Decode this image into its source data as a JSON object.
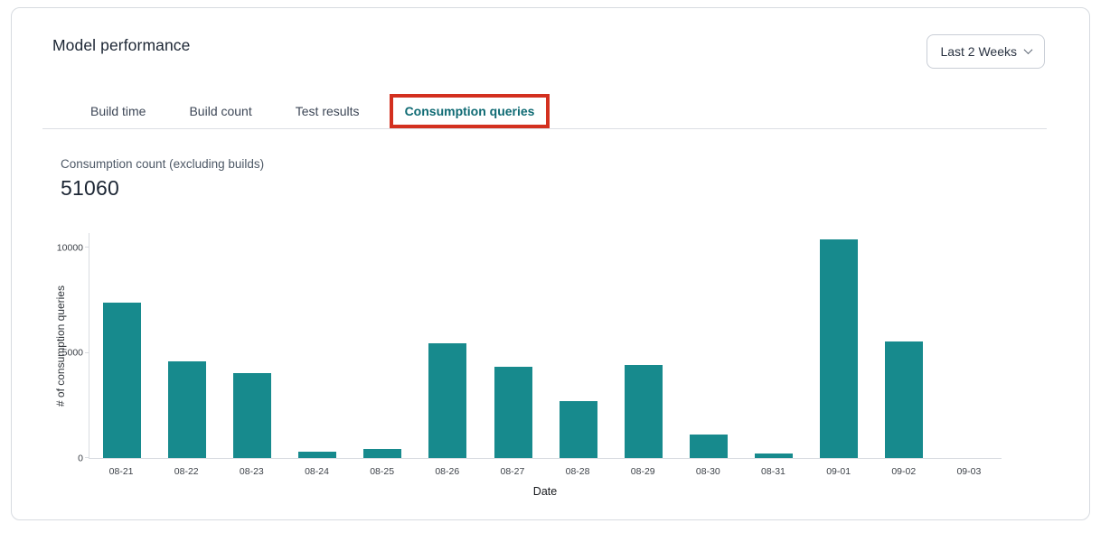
{
  "header": {
    "title": "Model performance",
    "date_range": {
      "value": "Last 2 Weeks"
    }
  },
  "tabs": {
    "items": [
      {
        "label": "Build time"
      },
      {
        "label": "Build count"
      },
      {
        "label": "Test results"
      },
      {
        "label": "Consumption queries"
      }
    ],
    "active": "Consumption queries"
  },
  "metric": {
    "label": "Consumption count (excluding builds)",
    "value": "51060"
  },
  "chart_data": {
    "type": "bar",
    "categories": [
      "08-21",
      "08-22",
      "08-23",
      "08-24",
      "08-25",
      "08-26",
      "08-27",
      "08-28",
      "08-29",
      "08-30",
      "08-31",
      "09-01",
      "09-02",
      "09-03"
    ],
    "values": [
      7400,
      4600,
      4050,
      310,
      440,
      5480,
      4340,
      2700,
      4450,
      1130,
      210,
      10400,
      5550,
      0
    ],
    "title": "",
    "xlabel": "Date",
    "ylabel": "# of consumption queries",
    "yticks": [
      0,
      5000,
      10000
    ],
    "ylim": [
      0,
      10750
    ],
    "grid": false,
    "legend": false,
    "bar_color": "#178a8d"
  },
  "annotation": {
    "shape": "rectangle",
    "target": "Consumption queries tab"
  },
  "colors": {
    "bar_teal": "#178a8d",
    "active_tab_teal": "#0e6a73",
    "annotation_red": "#d3301f"
  }
}
